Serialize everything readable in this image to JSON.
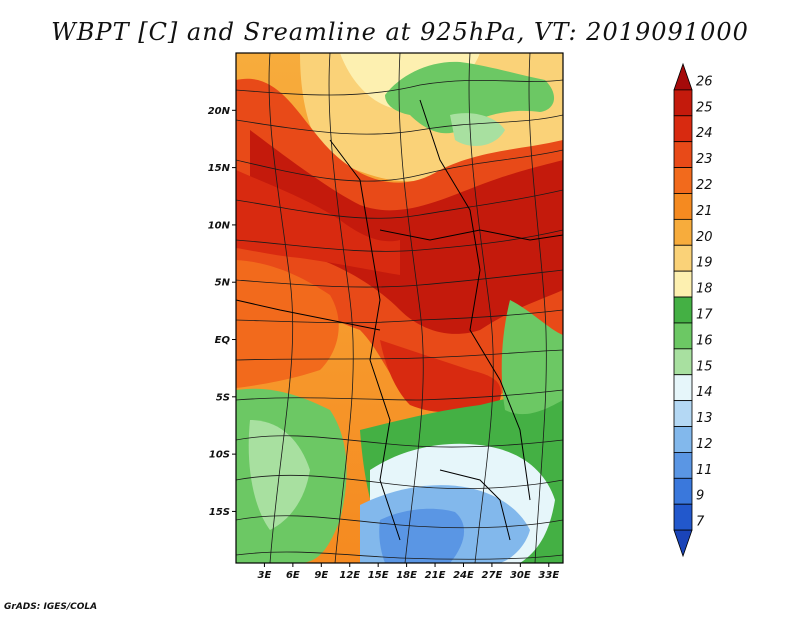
{
  "title": "WBPT [C] and Sreamline at 925hPa, VT: 2019091000",
  "credit": "GrADS: IGES/COLA",
  "map": {
    "description_variable": "Wet-bulb potential temperature",
    "lat_labels": [
      "20N",
      "15N",
      "10N",
      "5N",
      "EQ",
      "5S",
      "10S",
      "15S"
    ],
    "lat_values": [
      20,
      15,
      10,
      5,
      0,
      -5,
      -10,
      -15
    ],
    "lon_labels": [
      "3E",
      "6E",
      "9E",
      "12E",
      "15E",
      "18E",
      "21E",
      "24E",
      "27E",
      "30E",
      "33E"
    ],
    "lon_values": [
      3,
      6,
      9,
      12,
      15,
      18,
      21,
      24,
      27,
      30,
      33
    ],
    "lon_range": [
      0,
      34.5
    ],
    "lat_range": [
      -19.5,
      25
    ]
  },
  "colorbar": {
    "labels": [
      "26",
      "25",
      "24",
      "23",
      "22",
      "21",
      "20",
      "19",
      "18",
      "17",
      "16",
      "15",
      "14",
      "13",
      "12",
      "11",
      "9",
      "7"
    ],
    "colors": [
      "#a50a0a",
      "#c41a0c",
      "#d82a10",
      "#e84a18",
      "#f26a1c",
      "#f58a20",
      "#f7ac3c",
      "#fad278",
      "#fdf0b0",
      "#44b044",
      "#6cc864",
      "#a8e0a0",
      "#e6f6fa",
      "#b4d8f4",
      "#82b8ec",
      "#5a96e4",
      "#3a78dc",
      "#2258cc",
      "#1a44b8"
    ]
  }
}
